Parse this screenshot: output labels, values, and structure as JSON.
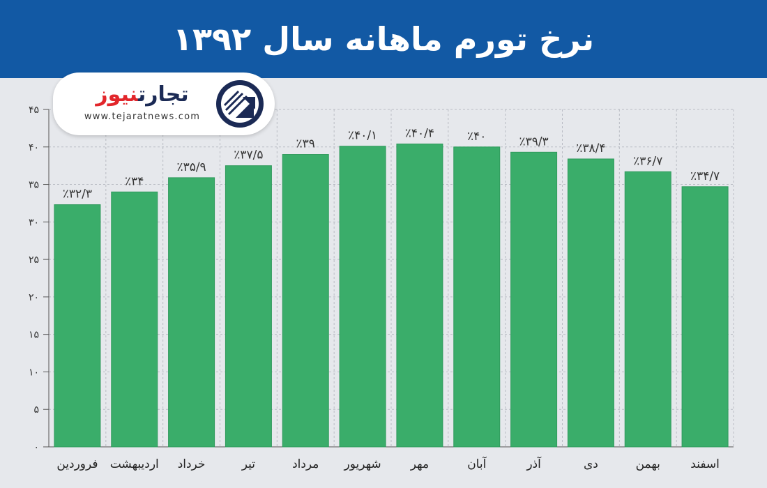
{
  "header": {
    "title": "نرخ تورم ماهانه سال ۱۳۹۲"
  },
  "logo": {
    "wordmark_dark": "تجارت",
    "wordmark_red": "نیوز",
    "url": "www.tejaratnews.com"
  },
  "colors": {
    "header_bg": "#1259a4",
    "bar": "#3aad6a",
    "bar_edge": "#2f9a5c",
    "background": "#e6e8ec",
    "logo_red": "#e2262b",
    "logo_navy": "#1b2a55"
  },
  "chart_data": {
    "type": "bar",
    "title": "نرخ تورم ماهانه سال ۱۳۹۲",
    "xlabel": "",
    "ylabel": "",
    "ylim": [
      0,
      45
    ],
    "yticks": [
      0,
      5,
      10,
      15,
      20,
      25,
      30,
      35,
      40,
      45
    ],
    "ytick_labels": [
      "٠",
      "۵",
      "١٠",
      "١۵",
      "٢٠",
      "٢۵",
      "٣٠",
      "٣۵",
      "۴٠",
      "۴۵"
    ],
    "grid": true,
    "categories": [
      "فروردین",
      "اردیبهشت",
      "خرداد",
      "تیر",
      "مرداد",
      "شهریور",
      "مهر",
      "آبان",
      "آذر",
      "دی",
      "بهمن",
      "اسفند"
    ],
    "values": [
      32.3,
      34,
      35.9,
      37.5,
      39,
      40.1,
      40.4,
      40,
      39.3,
      38.4,
      36.7,
      34.7
    ],
    "data_labels": [
      "٪۳۲/۳",
      "٪۳۴",
      "٪۳۵/۹",
      "٪۳۷/۵",
      "٪۳۹",
      "٪۴۰/۱",
      "٪۴۰/۴",
      "٪۴۰",
      "٪۳۹/۳",
      "٪۳۸/۴",
      "٪۳۶/۷",
      "٪۳۴/۷"
    ]
  }
}
